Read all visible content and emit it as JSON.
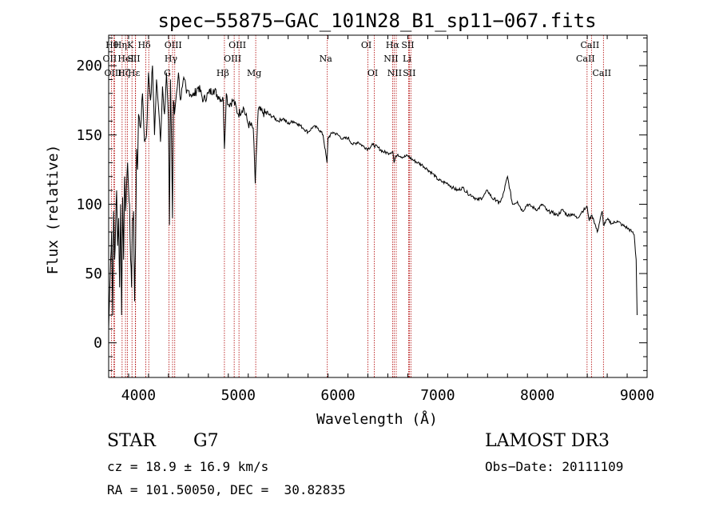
{
  "chart_data": {
    "type": "line",
    "title": "spec−55875−GAC_101N28_B1_sp11−067.fits",
    "xlabel": "Wavelength (Å)",
    "ylabel": "Flux (relative)",
    "xlim": [
      3700,
      9100
    ],
    "ylim": [
      -25,
      222
    ],
    "xticks": [
      4000,
      5000,
      6000,
      7000,
      8000,
      9000
    ],
    "yticks": [
      0,
      50,
      100,
      150,
      200
    ],
    "series": [
      {
        "name": "spectrum",
        "x": [
          3700,
          3710,
          3720,
          3730,
          3740,
          3750,
          3760,
          3770,
          3780,
          3790,
          3800,
          3810,
          3820,
          3830,
          3840,
          3850,
          3860,
          3870,
          3880,
          3890,
          3900,
          3910,
          3920,
          3930,
          3940,
          3950,
          3960,
          3970,
          3980,
          3990,
          4000,
          4020,
          4040,
          4060,
          4080,
          4100,
          4120,
          4140,
          4160,
          4180,
          4200,
          4220,
          4240,
          4260,
          4280,
          4300,
          4310,
          4320,
          4330,
          4340,
          4350,
          4360,
          4380,
          4400,
          4420,
          4440,
          4460,
          4480,
          4500,
          4550,
          4600,
          4650,
          4700,
          4750,
          4800,
          4850,
          4861,
          4880,
          4900,
          4950,
          5000,
          5050,
          5100,
          5150,
          5170,
          5180,
          5200,
          5250,
          5300,
          5350,
          5400,
          5450,
          5500,
          5550,
          5600,
          5650,
          5700,
          5750,
          5800,
          5850,
          5890,
          5900,
          5950,
          6000,
          6050,
          6100,
          6150,
          6200,
          6250,
          6300,
          6350,
          6400,
          6450,
          6500,
          6550,
          6563,
          6580,
          6600,
          6650,
          6700,
          6750,
          6800,
          6850,
          6900,
          6950,
          7000,
          7050,
          7100,
          7150,
          7200,
          7250,
          7300,
          7350,
          7400,
          7450,
          7500,
          7550,
          7600,
          7610,
          7650,
          7700,
          7750,
          7800,
          7850,
          7900,
          7950,
          8000,
          8050,
          8100,
          8150,
          8200,
          8250,
          8300,
          8350,
          8400,
          8450,
          8500,
          8520,
          8540,
          8560,
          8600,
          8650,
          8662,
          8700,
          8750,
          8800,
          8850,
          8900,
          8950,
          8970,
          8990,
          9000
        ],
        "y": [
          10,
          35,
          60,
          80,
          20,
          95,
          60,
          85,
          110,
          70,
          90,
          40,
          100,
          20,
          105,
          60,
          120,
          95,
          115,
          130,
          110,
          100,
          60,
          40,
          90,
          95,
          30,
          70,
          140,
          125,
          165,
          155,
          180,
          145,
          150,
          195,
          175,
          200,
          150,
          190,
          170,
          145,
          185,
          165,
          195,
          160,
          85,
          190,
          150,
          90,
          175,
          165,
          180,
          195,
          175,
          185,
          190,
          180,
          182,
          178,
          185,
          175,
          180,
          183,
          178,
          175,
          140,
          180,
          172,
          175,
          165,
          170,
          158,
          155,
          115,
          135,
          168,
          166,
          165,
          163,
          160,
          162,
          158,
          160,
          158,
          155,
          152,
          156,
          155,
          150,
          130,
          148,
          152,
          150,
          147,
          148,
          143,
          145,
          142,
          140,
          143,
          141,
          138,
          137,
          138,
          130,
          135,
          136,
          134,
          135,
          132,
          130,
          128,
          125,
          122,
          118,
          116,
          115,
          112,
          110,
          112,
          108,
          106,
          103,
          105,
          110,
          104,
          103,
          100,
          105,
          120,
          100,
          102,
          95,
          100,
          98,
          96,
          100,
          95,
          94,
          92,
          96,
          92,
          93,
          90,
          95,
          98,
          88,
          92,
          90,
          80,
          95,
          85,
          89,
          86,
          88,
          85,
          83,
          80,
          78,
          60,
          20
        ]
      }
    ],
    "lines": [
      {
        "w": 3727,
        "row": 1,
        "label": "OII"
      },
      {
        "w": 3750,
        "row": 0,
        "label": "Hθ"
      },
      {
        "w": 3760,
        "row": 2,
        "label": "OIII"
      },
      {
        "w": 3835,
        "row": 0,
        "label": "Hη"
      },
      {
        "w": 3869,
        "row": 2,
        "label": "Hζ"
      },
      {
        "w": 3889,
        "row": 1,
        "label": "HeI"
      },
      {
        "w": 3934,
        "row": 0,
        "label": "K"
      },
      {
        "w": 3968,
        "row": 1,
        "label": "SII"
      },
      {
        "w": 3970,
        "row": 2,
        "label": "Hε"
      },
      {
        "w": 4073,
        "row": 0,
        "label": "Hδ"
      },
      {
        "w": 4102,
        "row": 1,
        "label": ""
      },
      {
        "w": 4305,
        "row": 2,
        "label": "G"
      },
      {
        "w": 4341,
        "row": 1,
        "label": "Hγ"
      },
      {
        "w": 4363,
        "row": 0,
        "label": "OIII"
      },
      {
        "w": 4861,
        "row": 2,
        "label": "Hβ"
      },
      {
        "w": 4959,
        "row": 1,
        "label": "OIII"
      },
      {
        "w": 5007,
        "row": 0,
        "label": "OIII"
      },
      {
        "w": 5175,
        "row": 2,
        "label": "Mg"
      },
      {
        "w": 5893,
        "row": 1,
        "label": "Na"
      },
      {
        "w": 6300,
        "row": 0,
        "label": "OI"
      },
      {
        "w": 6364,
        "row": 2,
        "label": "OI"
      },
      {
        "w": 6548,
        "row": 1,
        "label": "NII"
      },
      {
        "w": 6563,
        "row": 0,
        "label": "Hα"
      },
      {
        "w": 6584,
        "row": 2,
        "label": "NII"
      },
      {
        "w": 6708,
        "row": 1,
        "label": "Li"
      },
      {
        "w": 6716,
        "row": 0,
        "label": "SII"
      },
      {
        "w": 6731,
        "row": 2,
        "label": "SII"
      },
      {
        "w": 8498,
        "row": 1,
        "label": "CaII"
      },
      {
        "w": 8542,
        "row": 0,
        "label": "CaII"
      },
      {
        "w": 8662,
        "row": 2,
        "label": "CaII"
      }
    ]
  },
  "info": {
    "object_class": "STAR",
    "subclass": "G7",
    "survey": "LAMOST DR3",
    "cz": "cz = 18.9 ± 16.9 km/s",
    "obs_date": "Obs−Date: 20111109",
    "radec": "RA = 101.50050, DEC =  30.82835"
  },
  "colors": {
    "spectrum": "#000000",
    "line_marker": "#b00000",
    "axis": "#000000"
  }
}
